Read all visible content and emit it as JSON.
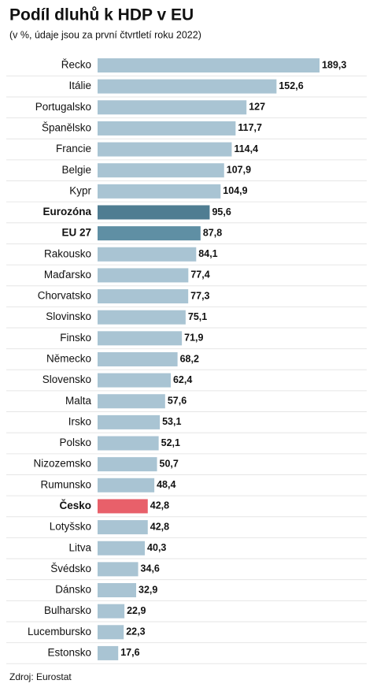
{
  "chart_data": {
    "type": "hbar",
    "title": "Podíl dluhů k HDP v EU",
    "subtitle": "(v %, údaje jsou za první čtvrtletí roku 2022)",
    "source": "Zdroj: Eurostat",
    "categories": [
      "Řecko",
      "Itálie",
      "Portugalsko",
      "Španělsko",
      "Francie",
      "Belgie",
      "Kypr",
      "Eurozóna",
      "EU 27",
      "Rakousko",
      "Maďarsko",
      "Chorvatsko",
      "Slovinsko",
      "Finsko",
      "Německo",
      "Slovensko",
      "Malta",
      "Irsko",
      "Polsko",
      "Nizozemsko",
      "Rumunsko",
      "Česko",
      "Lotyšsko",
      "Litva",
      "Švédsko",
      "Dánsko",
      "Bulharsko",
      "Lucembursko",
      "Estonsko"
    ],
    "values": [
      189.3,
      152.6,
      127,
      117.7,
      114.4,
      107.9,
      104.9,
      95.6,
      87.8,
      84.1,
      77.4,
      77.3,
      75.1,
      71.9,
      68.2,
      62.4,
      57.6,
      53.1,
      52.1,
      50.7,
      48.4,
      42.8,
      42.8,
      40.3,
      34.6,
      32.9,
      22.9,
      22.3,
      17.6
    ],
    "value_labels": [
      "189,3",
      "152,6",
      "127",
      "117,7",
      "114,4",
      "107,9",
      "104,9",
      "95,6",
      "87,8",
      "84,1",
      "77,4",
      "77,3",
      "75,1",
      "71,9",
      "68,2",
      "62,4",
      "57,6",
      "53,1",
      "52,1",
      "50,7",
      "48,4",
      "42,8",
      "42,8",
      "40,3",
      "34,6",
      "32,9",
      "22,9",
      "22,3",
      "17,6"
    ],
    "color": "#a9c4d3",
    "colors": [
      "#a9c4d3",
      "#a9c4d3",
      "#a9c4d3",
      "#a9c4d3",
      "#a9c4d3",
      "#a9c4d3",
      "#a9c4d3",
      "#4f7d92",
      "#5f8fa4",
      "#a9c4d3",
      "#a9c4d3",
      "#a9c4d3",
      "#a9c4d3",
      "#a9c4d3",
      "#a9c4d3",
      "#a9c4d3",
      "#a9c4d3",
      "#a9c4d3",
      "#a9c4d3",
      "#a9c4d3",
      "#a9c4d3",
      "#e8606a",
      "#a9c4d3",
      "#a9c4d3",
      "#a9c4d3",
      "#a9c4d3",
      "#a9c4d3",
      "#a9c4d3",
      "#a9c4d3"
    ]
  }
}
